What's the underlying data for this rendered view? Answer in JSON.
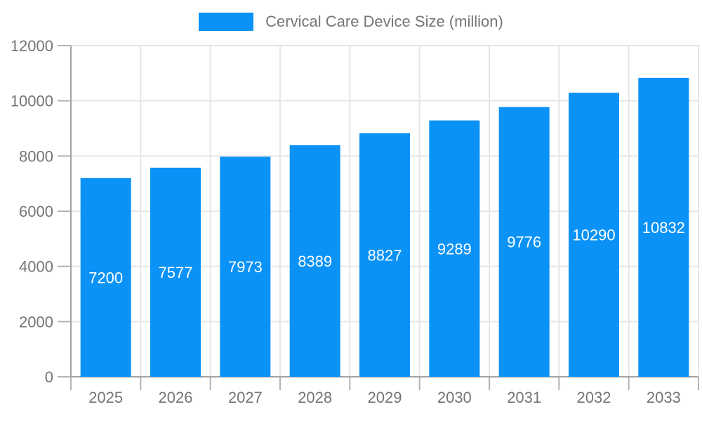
{
  "legend": {
    "label": "Cervical Care Device Size (million)"
  },
  "chart_data": {
    "type": "bar",
    "title": "Cervical Care Device Size (million)",
    "categories": [
      "2025",
      "2026",
      "2027",
      "2028",
      "2029",
      "2030",
      "2031",
      "2032",
      "2033"
    ],
    "series": [
      {
        "name": "Cervical Care Device Size (million)",
        "values": [
          7200,
          7577,
          7973,
          8389,
          8827,
          9289,
          9776,
          10290,
          10832
        ]
      }
    ],
    "value_labels_shown": true,
    "xlabel": "",
    "ylabel": "",
    "ylim": [
      0,
      12000
    ],
    "yticks": [
      0,
      2000,
      4000,
      6000,
      8000,
      10000,
      12000
    ],
    "grid": true,
    "legend_position": "top-center",
    "colors": {
      "bar": "#0a92f6",
      "value_label": "#ffffff",
      "axis_text": "#757575",
      "axis_line": "#a3a3a3",
      "tick_line": "#b3b3b3",
      "grid_line": "#e6e6e6",
      "background": "#ffffff"
    }
  }
}
